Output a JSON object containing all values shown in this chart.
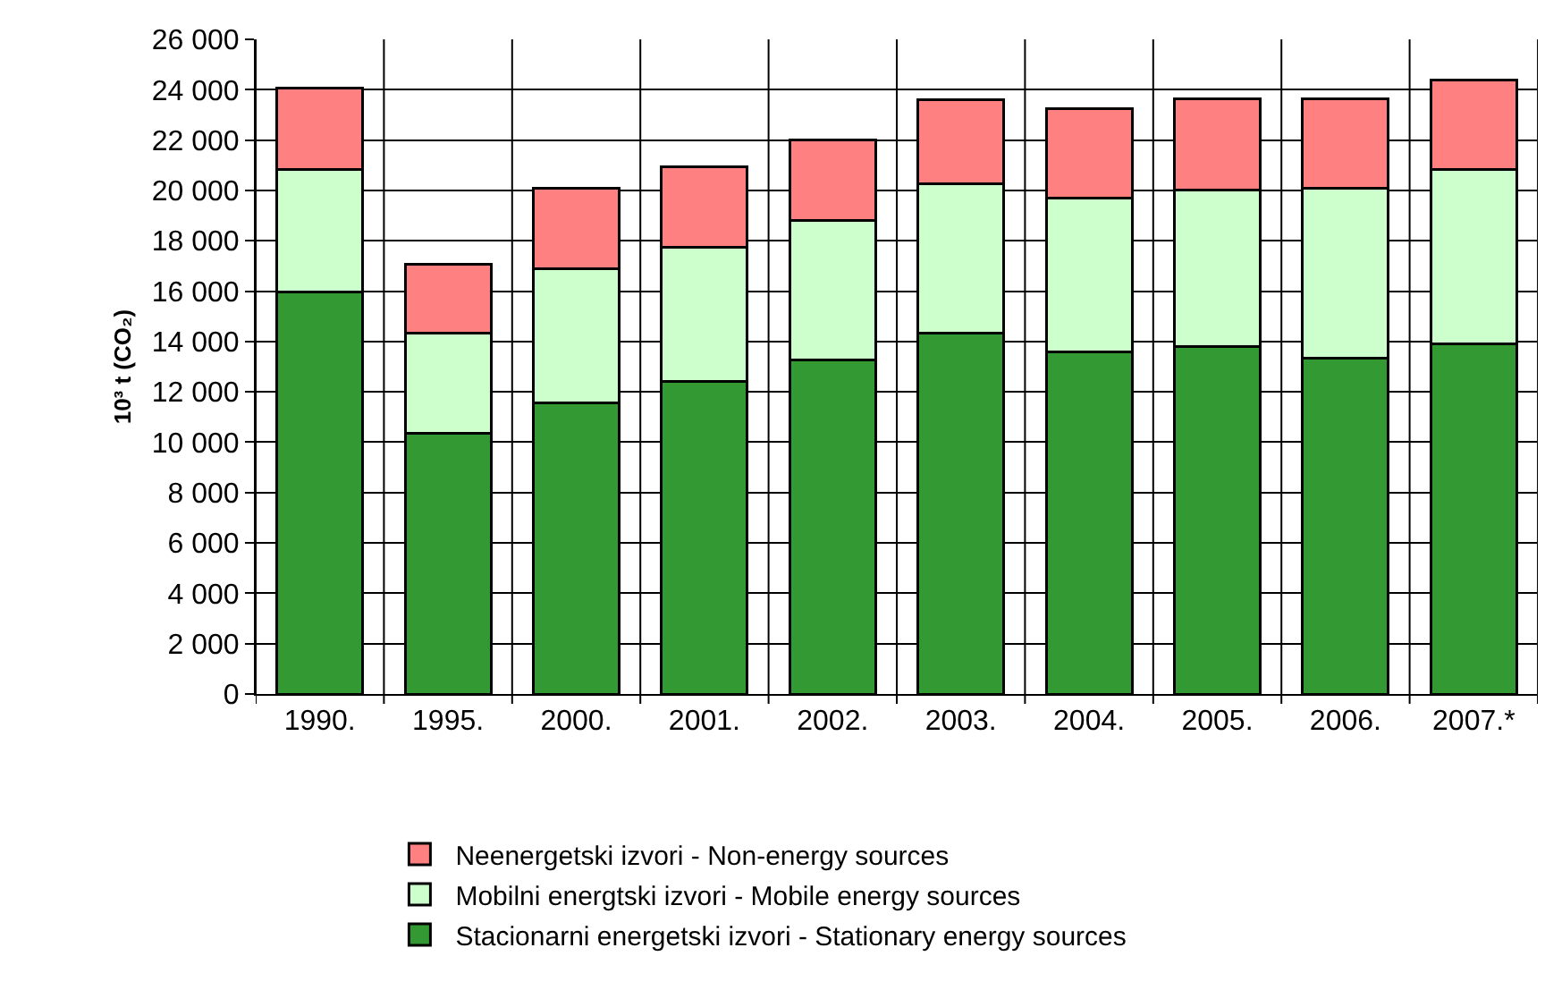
{
  "chart_data": {
    "type": "bar",
    "stacked": true,
    "ylabel": "10³ t (CO₂)",
    "categories": [
      "1990.",
      "1995.",
      "2000.",
      "2001.",
      "2002.",
      "2003.",
      "2004.",
      "2005.",
      "2006.",
      "2007.*"
    ],
    "series": [
      {
        "name": "Stacionarni energetski izvori - Stationary energy sources",
        "color": "#339933",
        "values": [
          15950,
          10350,
          11550,
          12400,
          13250,
          14350,
          13600,
          13800,
          13350,
          13900
        ]
      },
      {
        "name": "Mobilni energtski izvori - Mobile energy sources",
        "color": "#ccffcc",
        "values": [
          4900,
          4000,
          5350,
          5350,
          5550,
          5900,
          6100,
          6200,
          6750,
          6950
        ]
      },
      {
        "name": "Neenergetski izvori - Non-energy sources",
        "color": "#ff8080",
        "values": [
          3200,
          2700,
          3200,
          3200,
          3200,
          3350,
          3550,
          3650,
          3550,
          3550
        ]
      }
    ],
    "ylim": [
      0,
      26000
    ],
    "yticks": [
      0,
      {
        "value": 2000,
        "label": "2 000"
      },
      {
        "value": 4000,
        "label": "4 000"
      },
      {
        "value": 6000,
        "label": "6 000"
      },
      {
        "value": 8000,
        "label": "8 000"
      },
      {
        "value": 10000,
        "label": "10 000"
      },
      {
        "value": 12000,
        "label": "12 000"
      },
      {
        "value": 14000,
        "label": "14 000"
      },
      {
        "value": 16000,
        "label": "16 000"
      },
      {
        "value": 18000,
        "label": "18 000"
      },
      {
        "value": 20000,
        "label": "20 000"
      },
      {
        "value": 22000,
        "label": "22 000"
      },
      {
        "value": 24000,
        "label": "24 000"
      },
      {
        "value": 26000,
        "label": "26 000"
      }
    ],
    "grid": true,
    "legend": "bottom"
  }
}
